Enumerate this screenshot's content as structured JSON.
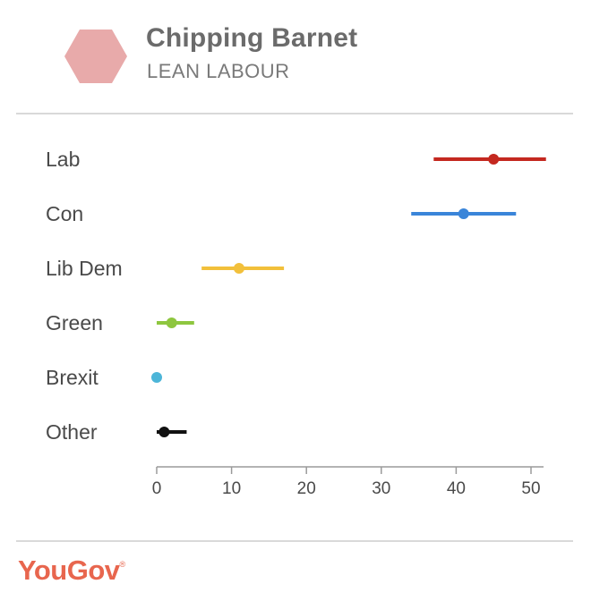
{
  "header": {
    "title": "Chipping Barnet",
    "subtitle": "LEAN LABOUR",
    "hex_color": "#e8aaaa"
  },
  "chart_data": {
    "type": "dot-range",
    "title": "",
    "xlim": [
      0,
      50
    ],
    "x_ticks": [
      0,
      10,
      20,
      30,
      40,
      50
    ],
    "series": [
      {
        "name": "Lab",
        "value": 45,
        "low": 37,
        "high": 52,
        "color": "#c4281f"
      },
      {
        "name": "Con",
        "value": 41,
        "low": 34,
        "high": 48,
        "color": "#3a85d9"
      },
      {
        "name": "Lib Dem",
        "value": 11,
        "low": 6,
        "high": 17,
        "color": "#f2c03b"
      },
      {
        "name": "Green",
        "value": 2,
        "low": 0,
        "high": 5,
        "color": "#8ec63f"
      },
      {
        "name": "Brexit",
        "value": 0,
        "low": 0,
        "high": 0,
        "color": "#4cb5d8"
      },
      {
        "name": "Other",
        "value": 1,
        "low": 0,
        "high": 4,
        "color": "#111111"
      }
    ]
  },
  "footer": {
    "brand": "YouGov",
    "brand_mark": "®",
    "brand_color": "#e8664e"
  }
}
